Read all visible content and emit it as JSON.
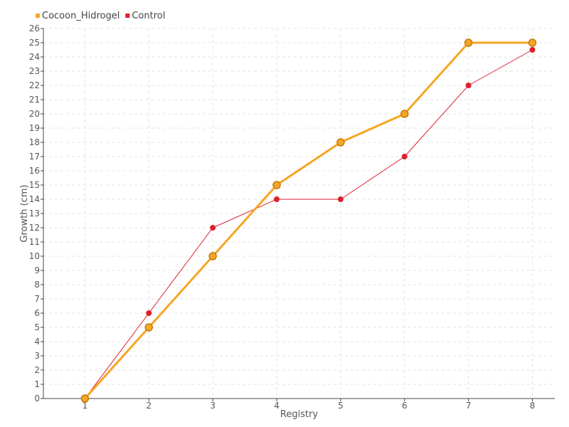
{
  "chart_data": {
    "type": "line",
    "xlabel": "Registry",
    "ylabel": "Growth (cm)",
    "x": [
      1,
      2,
      3,
      4,
      5,
      6,
      7,
      8
    ],
    "ylim": [
      0,
      26
    ],
    "yticks": [
      0,
      1,
      2,
      3,
      4,
      5,
      6,
      7,
      8,
      9,
      10,
      11,
      12,
      13,
      14,
      15,
      16,
      17,
      18,
      19,
      20,
      21,
      22,
      23,
      24,
      25,
      26
    ],
    "grid": true,
    "legend_position": "top-left",
    "series": [
      {
        "name": "Cocoon_Hidrogel",
        "color": "#f5a623",
        "values": [
          0,
          5,
          10,
          15,
          18,
          20,
          25,
          25
        ]
      },
      {
        "name": "Control",
        "color": "#dc1f2e",
        "values": [
          0,
          6,
          12,
          14,
          14,
          17,
          22,
          24.5
        ]
      }
    ]
  }
}
